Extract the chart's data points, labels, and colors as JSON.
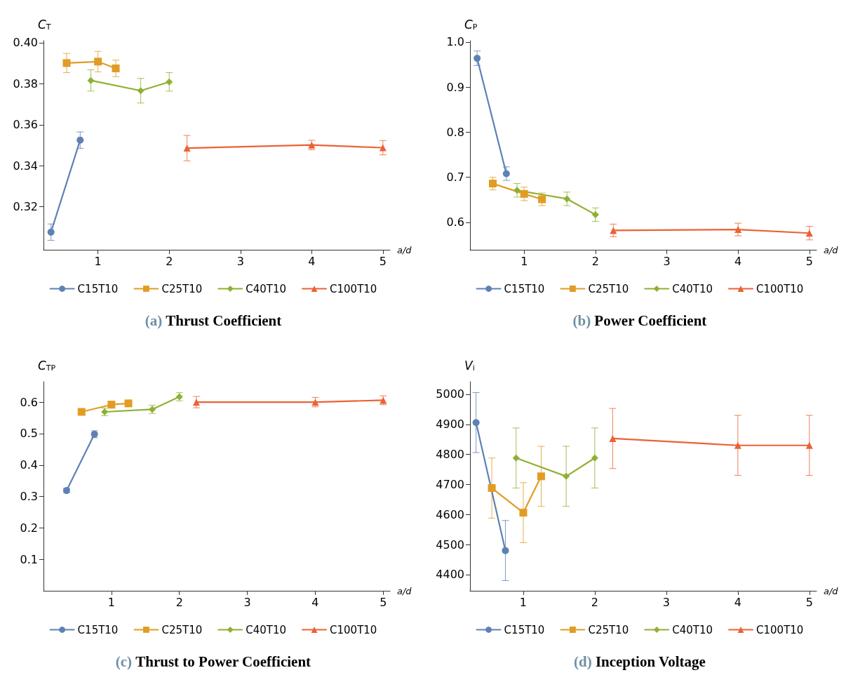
{
  "chart_data": [
    {
      "type": "line",
      "title": "(a) Thrust Coefficient",
      "xlabel": "a/d",
      "ylabel": "C$_{T}$",
      "xlim": [
        0.235,
        5.1
      ],
      "xticks": [
        1,
        2,
        3,
        4,
        5
      ],
      "ylim": [
        0.299,
        0.401
      ],
      "yticks": [
        0.32,
        0.34,
        0.36,
        0.38,
        {
          "value": 0.4,
          "label": "0.40"
        }
      ],
      "legend": "bottom",
      "series": [
        {
          "name": "C15T10",
          "color": "#5e81b5",
          "marker": "circle",
          "x": [
            0.34,
            0.75
          ],
          "values": [
            0.3076,
            0.3525
          ],
          "errors": [
            0.004,
            0.004
          ]
        },
        {
          "name": "C25T10",
          "color": "#e19c24",
          "marker": "square",
          "x": [
            0.56,
            1,
            1.25
          ],
          "values": [
            0.3901,
            0.3908,
            0.3875
          ],
          "errors": [
            0.0047,
            0.005,
            0.004
          ]
        },
        {
          "name": "C40T10",
          "color": "#8fb032",
          "marker": "diamond",
          "x": [
            0.9,
            1.6,
            2
          ],
          "values": [
            0.3816,
            0.3766,
            0.3809
          ],
          "errors": [
            0.0052,
            0.006,
            0.0045
          ]
        },
        {
          "name": "C100T10",
          "color": "#eb6235",
          "marker": "triangle",
          "x": [
            2.25,
            4,
            5
          ],
          "values": [
            0.3486,
            0.3501,
            0.3488
          ],
          "errors": [
            0.0062,
            0.0023,
            0.0035
          ]
        }
      ]
    },
    {
      "type": "line",
      "title": "(b) Power Coefficient",
      "xlabel": "a/d",
      "ylabel": "C$_{P}$",
      "xlim": [
        0.24,
        5.1
      ],
      "xticks": [
        1,
        2,
        3,
        4,
        5
      ],
      "ylim": [
        0.539,
        1.003
      ],
      "yticks": [
        0.6,
        0.7,
        0.8,
        0.9,
        {
          "value": 1,
          "label": "1.0"
        }
      ],
      "legend": "bottom",
      "series": [
        {
          "name": "C15T10",
          "color": "#5e81b5",
          "marker": "circle",
          "x": [
            0.34,
            0.75
          ],
          "values": [
            0.964,
            0.708
          ],
          "errors": [
            0.016,
            0.015
          ]
        },
        {
          "name": "C25T10",
          "color": "#e19c24",
          "marker": "square",
          "x": [
            0.56,
            1,
            1.25
          ],
          "values": [
            0.686,
            0.663,
            0.651
          ],
          "errors": [
            0.014,
            0.015,
            0.014
          ]
        },
        {
          "name": "C40T10",
          "color": "#8fb032",
          "marker": "diamond",
          "x": [
            0.9,
            1.6,
            2
          ],
          "values": [
            0.671,
            0.652,
            0.617
          ],
          "errors": [
            0.015,
            0.015,
            0.015
          ]
        },
        {
          "name": "C100T10",
          "color": "#eb6235",
          "marker": "triangle",
          "x": [
            2.25,
            4,
            5
          ],
          "values": [
            0.582,
            0.584,
            0.576
          ],
          "errors": [
            0.014,
            0.014,
            0.015
          ]
        }
      ]
    },
    {
      "type": "line",
      "title": "(c) Thrust to Power Coefficient",
      "xlabel": "a/d",
      "ylabel": "C$_{TP}$",
      "xlim": [
        0,
        5.1
      ],
      "xticks": [
        1,
        2,
        3,
        4,
        5
      ],
      "ylim": [
        0,
        0.665
      ],
      "yticks": [
        0.1,
        0.2,
        0.3,
        0.4,
        0.5,
        0.6
      ],
      "legend": "bottom",
      "series": [
        {
          "name": "C15T10",
          "color": "#5e81b5",
          "marker": "circle",
          "x": [
            0.34,
            0.75
          ],
          "values": [
            0.319,
            0.498
          ],
          "errors": [
            0.007,
            0.011
          ]
        },
        {
          "name": "C25T10",
          "color": "#e19c24",
          "marker": "square",
          "x": [
            0.56,
            1,
            1.25
          ],
          "values": [
            0.569,
            0.592,
            0.596
          ],
          "errors": [
            0.01,
            0.011,
            0.01
          ]
        },
        {
          "name": "C40T10",
          "color": "#8fb032",
          "marker": "diamond",
          "x": [
            0.9,
            1.6,
            2
          ],
          "values": [
            0.569,
            0.577,
            0.617
          ],
          "errors": [
            0.012,
            0.013,
            0.013
          ]
        },
        {
          "name": "C100T10",
          "color": "#eb6235",
          "marker": "triangle",
          "x": [
            2.25,
            4,
            5
          ],
          "values": [
            0.6,
            0.6,
            0.606
          ],
          "errors": [
            0.018,
            0.015,
            0.014
          ]
        }
      ]
    },
    {
      "type": "line",
      "title": "(d) Inception Voltage",
      "xlabel": "a/d",
      "ylabel": "V$_{i}$",
      "xlim": [
        0.255,
        5.1
      ],
      "xticks": [
        1,
        2,
        3,
        4,
        5
      ],
      "ylim": [
        4346,
        5042
      ],
      "yticks": [
        4400,
        4500,
        4600,
        4700,
        4800,
        4900,
        5000
      ],
      "legend": "bottom",
      "series": [
        {
          "name": "C15T10",
          "color": "#5e81b5",
          "marker": "circle",
          "x": [
            0.34,
            0.75
          ],
          "values": [
            4906,
            4480
          ],
          "errors": [
            100,
            100
          ]
        },
        {
          "name": "C25T10",
          "color": "#e19c24",
          "marker": "square",
          "x": [
            0.56,
            1,
            1.25
          ],
          "values": [
            4688,
            4606,
            4727
          ],
          "errors": [
            100,
            100,
            100
          ]
        },
        {
          "name": "C40T10",
          "color": "#8fb032",
          "marker": "diamond",
          "x": [
            0.9,
            1.6,
            2
          ],
          "values": [
            4788,
            4727,
            4788
          ],
          "errors": [
            100,
            100,
            100
          ]
        },
        {
          "name": "C100T10",
          "color": "#eb6235",
          "marker": "triangle",
          "x": [
            2.25,
            4,
            5
          ],
          "values": [
            4853,
            4830,
            4830
          ],
          "errors": [
            100,
            100,
            100
          ]
        }
      ]
    }
  ]
}
